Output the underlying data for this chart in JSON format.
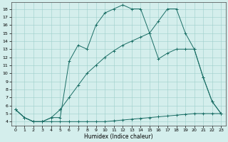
{
  "xlabel": "Humidex (Indice chaleur)",
  "background_color": "#d4eeec",
  "line_color": "#1a6e65",
  "xlim": [
    -0.5,
    23.5
  ],
  "ylim": [
    3.5,
    18.8
  ],
  "xticks": [
    0,
    1,
    2,
    3,
    4,
    5,
    6,
    7,
    8,
    9,
    10,
    11,
    12,
    13,
    14,
    15,
    16,
    17,
    18,
    19,
    20,
    21,
    22,
    23
  ],
  "yticks": [
    4,
    5,
    6,
    7,
    8,
    9,
    10,
    11,
    12,
    13,
    14,
    15,
    16,
    17,
    18
  ],
  "line1_x": [
    0,
    1,
    2,
    3,
    4,
    5,
    6,
    7,
    8,
    9,
    10,
    11,
    12,
    13,
    14,
    15,
    16,
    17,
    18,
    19,
    20,
    21,
    22,
    23
  ],
  "line1_y": [
    5.5,
    4.5,
    4.0,
    4.0,
    4.0,
    4.0,
    4.0,
    4.0,
    4.0,
    4.0,
    4.0,
    4.1,
    4.2,
    4.3,
    4.4,
    4.5,
    4.6,
    4.7,
    4.8,
    4.9,
    5.0,
    5.0,
    5.0,
    5.0
  ],
  "line2_x": [
    0,
    1,
    2,
    3,
    4,
    5,
    6,
    7,
    8,
    9,
    10,
    11,
    12,
    13,
    14,
    15,
    16,
    17,
    18,
    19,
    20,
    21,
    22,
    23
  ],
  "line2_y": [
    5.5,
    4.5,
    4.0,
    4.0,
    4.5,
    5.5,
    7.0,
    8.5,
    10.0,
    11.0,
    12.0,
    12.8,
    13.5,
    14.0,
    14.5,
    15.0,
    11.8,
    12.5,
    13.0,
    13.0,
    13.0,
    9.5,
    6.5,
    5.0
  ],
  "line3_x": [
    0,
    1,
    2,
    3,
    4,
    5,
    6,
    7,
    8,
    9,
    10,
    11,
    12,
    13,
    14,
    15,
    16,
    17,
    18,
    19,
    20,
    21,
    22,
    23
  ],
  "line3_y": [
    5.5,
    4.5,
    4.0,
    4.0,
    4.5,
    4.5,
    11.5,
    13.5,
    13.0,
    16.0,
    17.5,
    18.0,
    18.5,
    18.0,
    18.0,
    15.0,
    16.5,
    18.0,
    18.0,
    15.0,
    13.0,
    9.5,
    6.5,
    5.0
  ]
}
